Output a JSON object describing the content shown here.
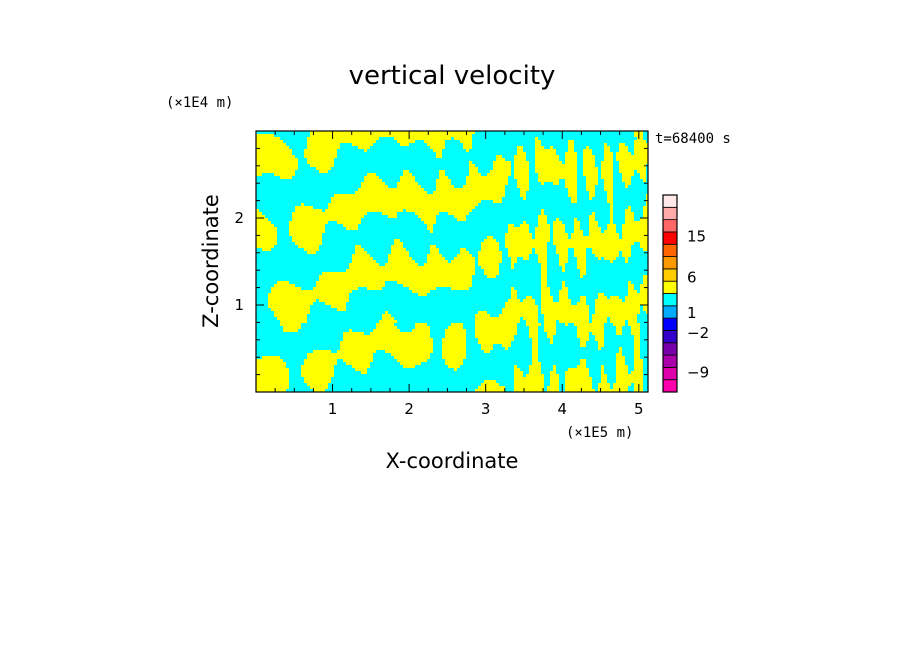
{
  "chart_data": {
    "type": "heatmap",
    "title": "vertical velocity",
    "xlabel": "X-coordinate",
    "ylabel": "Z-coordinate",
    "x_unit": "(×1E5 m)",
    "z_unit": "(×1E4 m)",
    "time_label": "t=68400 s",
    "xlim": [
      0,
      5.12
    ],
    "zlim": [
      0,
      3.0
    ],
    "x_ticks": [
      1,
      2,
      3,
      4,
      5
    ],
    "z_ticks": [
      1,
      2
    ],
    "field_colors": {
      "positive": "#ffff00",
      "negative": "#00ffff"
    },
    "colorbar": {
      "labels": [
        "15",
        "6",
        "1",
        "−2",
        "−9"
      ],
      "label_values": [
        15,
        6,
        1,
        -2,
        -9
      ],
      "levels": [
        {
          "color": "#ff00aa"
        },
        {
          "color": "#dd00aa"
        },
        {
          "color": "#aa00aa"
        },
        {
          "color": "#7700aa"
        },
        {
          "color": "#3300cc"
        },
        {
          "color": "#0000ff"
        },
        {
          "color": "#00aaff"
        },
        {
          "color": "#00ffff"
        },
        {
          "color": "#ffff00"
        },
        {
          "color": "#ffcc00"
        },
        {
          "color": "#ff9900"
        },
        {
          "color": "#ff6600"
        },
        {
          "color": "#ff0000"
        },
        {
          "color": "#ff6666"
        },
        {
          "color": "#ffaaaa"
        },
        {
          "color": "#ffe8e8"
        }
      ]
    }
  }
}
